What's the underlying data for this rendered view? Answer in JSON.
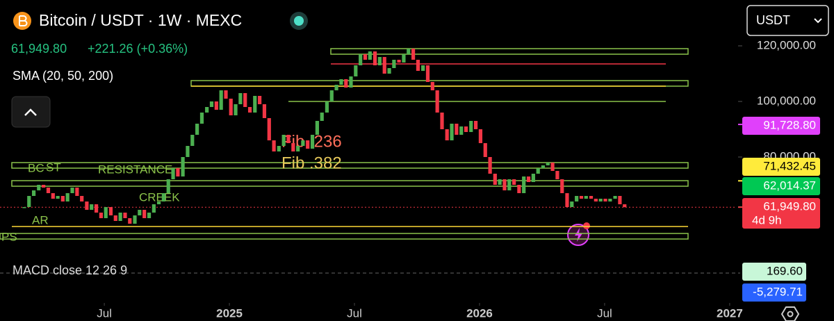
{
  "header": {
    "symbol": "Bitcoin / USDT · 1W · MEXC",
    "price": "61,949.80",
    "change": "+221.26 (+0.36%)",
    "indicator": "SMA (20, 50, 200)",
    "quote_selector": "USDT"
  },
  "chart_data": {
    "type": "candlestick",
    "x": [
      2024.18,
      2024.199,
      2024.218,
      2024.238,
      2024.257,
      2024.276,
      2024.295,
      2024.314,
      2024.334,
      2024.353,
      2024.372,
      2024.391,
      2024.41,
      2024.43,
      2024.449,
      2024.468,
      2024.487,
      2024.506,
      2024.526,
      2024.545,
      2024.564,
      2024.583,
      2024.602,
      2024.622,
      2024.641,
      2024.66,
      2024.679,
      2024.698,
      2024.718,
      2024.737,
      2024.756,
      2024.775,
      2024.794,
      2024.814,
      2024.833,
      2024.852,
      2024.871,
      2024.89,
      2024.91,
      2024.929,
      2024.948,
      2024.967,
      2024.986,
      2025.006,
      2025.025,
      2025.044,
      2025.063,
      2025.082,
      2025.102,
      2025.121,
      2025.14,
      2025.159,
      2025.178,
      2025.198,
      2025.217,
      2025.236,
      2025.255,
      2025.274,
      2025.294,
      2025.313,
      2025.332,
      2025.351,
      2025.37,
      2025.39,
      2025.409,
      2025.428,
      2025.447,
      2025.466,
      2025.486,
      2025.505,
      2025.524,
      2025.543,
      2025.562,
      2025.582,
      2025.601,
      2025.62,
      2025.639,
      2025.658,
      2025.678,
      2025.697,
      2025.716,
      2025.735,
      2025.754,
      2025.774,
      2025.793,
      2025.812,
      2025.831,
      2025.85,
      2025.87,
      2025.889,
      2025.908,
      2025.927,
      2025.946,
      2025.966,
      2025.985,
      2026.004,
      2026.023,
      2026.042,
      2026.062,
      2026.081,
      2026.1,
      2026.119,
      2026.138,
      2026.158,
      2026.177,
      2026.196,
      2026.215,
      2026.234,
      2026.254,
      2026.273,
      2026.292,
      2026.311,
      2026.33,
      2026.35,
      2026.369,
      2026.388,
      2026.407,
      2026.426,
      2026.446,
      2026.465,
      2026.484,
      2026.503,
      2026.522,
      2026.542,
      2026.561,
      2026.58
    ],
    "values": [
      62000,
      66000,
      68000,
      70000,
      69000,
      67000,
      65000,
      66000,
      64000,
      67000,
      69000,
      66000,
      64000,
      61000,
      63000,
      60000,
      58000,
      62000,
      59000,
      57000,
      60000,
      58000,
      56000,
      59000,
      61000,
      58000,
      60000,
      63000,
      64000,
      67000,
      72000,
      76000,
      73000,
      80000,
      84000,
      88000,
      92000,
      96000,
      98000,
      100000,
      97000,
      104000,
      101000,
      95000,
      99000,
      103000,
      98000,
      96000,
      102000,
      99000,
      94000,
      86000,
      82000,
      84000,
      88000,
      85000,
      82000,
      84000,
      86000,
      83000,
      88000,
      93000,
      96000,
      100000,
      104000,
      106000,
      108000,
      105000,
      109000,
      113000,
      117000,
      115000,
      118000,
      113000,
      116000,
      110000,
      112000,
      115000,
      114000,
      117000,
      119000,
      115000,
      111000,
      113000,
      107000,
      104000,
      96000,
      90000,
      86000,
      92000,
      88000,
      91000,
      89000,
      93000,
      90000,
      85000,
      80000,
      74000,
      70000,
      72000,
      68000,
      72000,
      70000,
      67000,
      73000,
      71000,
      74000,
      76000,
      77000,
      78000,
      75000,
      72000,
      67000,
      62000,
      64000,
      66000,
      65000,
      66000,
      65000,
      64000,
      65000,
      64000,
      65000,
      66000,
      63000,
      61949.8
    ],
    "up_color": "#4caf50",
    "down_color": "#f23645",
    "xlim": [
      2024.083,
      2027.417
    ],
    "xticks": [
      {
        "value": 2024.5,
        "label": "Jul"
      },
      2025,
      {
        "value": 2025.5,
        "label": "Jul"
      },
      2026,
      {
        "value": 2026.5,
        "label": "Jul"
      },
      2027
    ],
    "ylim": [
      46500,
      124000
    ],
    "yticks": [
      {
        "value": 120000,
        "label": "120,000.00"
      },
      {
        "value": 100000,
        "label": "100,000.00"
      },
      {
        "value": 80000,
        "label": "80,000.00"
      }
    ],
    "levels": [
      {
        "value": 118000,
        "color": "#8bc34a"
      },
      {
        "value": 113500,
        "color": "#f23645"
      },
      {
        "value": 106500,
        "color": "#8bc34a"
      },
      {
        "value": 105500,
        "color": "#fdd835"
      },
      {
        "value": 100000,
        "color": "#8bc34a"
      },
      {
        "value": 77000,
        "color": "#8bc34a"
      },
      {
        "value": 70500,
        "color": "#8bc34a"
      },
      {
        "value": 55000,
        "color": "#fdd835"
      },
      {
        "value": 51500,
        "color": "#8bc34a"
      }
    ],
    "price_tags": [
      {
        "value": 91728.8,
        "label": "91,728.80",
        "color": "#e040fb"
      },
      {
        "value": 71432.45,
        "label": "71,432.45",
        "color": "#ffeb3b"
      },
      {
        "value": 62014.37,
        "label": "62,014.37",
        "color": "#00c853"
      },
      {
        "value": 61949.8,
        "label": "61,949.80",
        "color": "#f23645"
      }
    ],
    "countdown": "4d 9h",
    "annotations": [
      "BC",
      "ST",
      "RESISTANCE",
      "CREEK",
      "AR",
      "PS",
      "Fib .236",
      "Fib .382"
    ]
  },
  "macd": {
    "label": "MACD close 12 26 9",
    "tags": [
      {
        "value": 169.6,
        "label": "169.60",
        "color": "#c8f7d8"
      },
      {
        "value": -5279.71,
        "label": "-5,279.71",
        "color": "#2962ff"
      }
    ]
  }
}
